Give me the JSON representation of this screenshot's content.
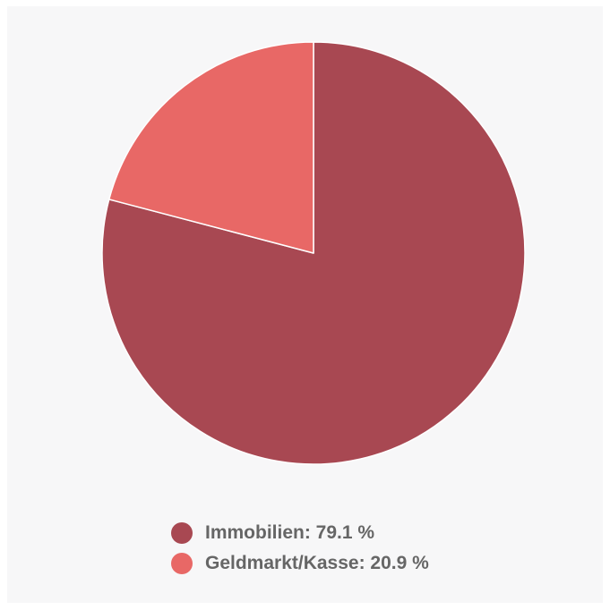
{
  "chart_data": {
    "type": "pie",
    "title": "",
    "series": [
      {
        "slices": [
          {
            "label": "Immobilien",
            "value": 79.1,
            "color": "#a84852",
            "legend_text": "Immobilien: 79.1 %"
          },
          {
            "label": "Geldmarkt/Kasse",
            "value": 20.9,
            "color": "#e86866",
            "legend_text": "Geldmarkt/Kasse: 20.9 %"
          }
        ]
      }
    ],
    "start_angle": "12 o'clock",
    "direction": "clockwise",
    "legend_position": "bottom-center"
  },
  "colors": {
    "background": "#f7f7f8",
    "slice_border": "#ffffff",
    "legend_text": "#666666"
  }
}
